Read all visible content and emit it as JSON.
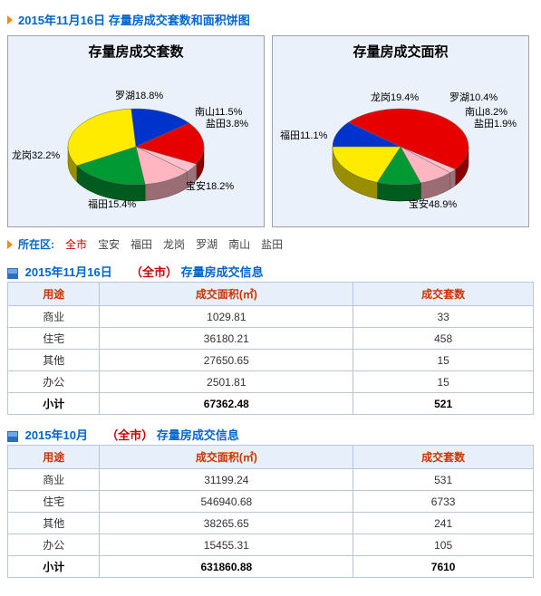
{
  "header_charts_title": "2015年11月16日 存量房成交套数和面积饼图",
  "chart1": {
    "type": "pie3d",
    "title": "存量房成交套数",
    "background_color": "#eaf1fa",
    "border_color": "#a0a0a0",
    "title_fontsize": 15,
    "label_fontsize": 11,
    "slices": [
      {
        "label": "龙岗",
        "value": 32.2,
        "color": "#ffeb00"
      },
      {
        "label": "福田",
        "value": 15.4,
        "color": "#0033cc"
      },
      {
        "label": "宝安",
        "value": 18.2,
        "color": "#e60000"
      },
      {
        "label": "盐田",
        "value": 3.8,
        "color": "#ffc0cb"
      },
      {
        "label": "南山",
        "value": 11.5,
        "color": "#ffb6c1"
      },
      {
        "label": "罗湖",
        "value": 18.8,
        "color": "#009933"
      }
    ]
  },
  "chart2": {
    "type": "pie3d",
    "title": "存量房成交面积",
    "background_color": "#eaf1fa",
    "border_color": "#a0a0a0",
    "title_fontsize": 15,
    "label_fontsize": 11,
    "slices": [
      {
        "label": "福田",
        "value": 11.1,
        "color": "#0033cc"
      },
      {
        "label": "宝安",
        "value": 48.9,
        "color": "#e60000"
      },
      {
        "label": "盐田",
        "value": 1.9,
        "color": "#ffc0cb"
      },
      {
        "label": "南山",
        "value": 8.2,
        "color": "#ffb6c1"
      },
      {
        "label": "罗湖",
        "value": 10.4,
        "color": "#009933"
      },
      {
        "label": "龙岗",
        "value": 19.4,
        "color": "#ffeb00"
      }
    ]
  },
  "filter": {
    "label": "所在区:",
    "options": [
      "全市",
      "宝安",
      "福田",
      "龙岗",
      "罗湖",
      "南山",
      "盐田"
    ],
    "active": "全市"
  },
  "table1": {
    "title_date": "2015年11月16日",
    "title_scope": "（全市）",
    "title_rest": "存量房成交信息",
    "columns": [
      "用途",
      "成交面积(㎡)",
      "成交套数"
    ],
    "rows": [
      [
        "商业",
        "1029.81",
        "33"
      ],
      [
        "住宅",
        "36180.21",
        "458"
      ],
      [
        "其他",
        "27650.65",
        "15"
      ],
      [
        "办公",
        "2501.81",
        "15"
      ]
    ],
    "subtotal": [
      "小计",
      "67362.48",
      "521"
    ]
  },
  "table2": {
    "title_date": "2015年10月",
    "title_scope": "（全市）",
    "title_rest": "存量房成交信息",
    "columns": [
      "用途",
      "成交面积(㎡)",
      "成交套数"
    ],
    "rows": [
      [
        "商业",
        "31199.24",
        "531"
      ],
      [
        "住宅",
        "546940.68",
        "6733"
      ],
      [
        "其他",
        "38265.65",
        "241"
      ],
      [
        "办公",
        "15455.31",
        "105"
      ]
    ],
    "subtotal": [
      "小计",
      "631860.88",
      "7610"
    ]
  }
}
